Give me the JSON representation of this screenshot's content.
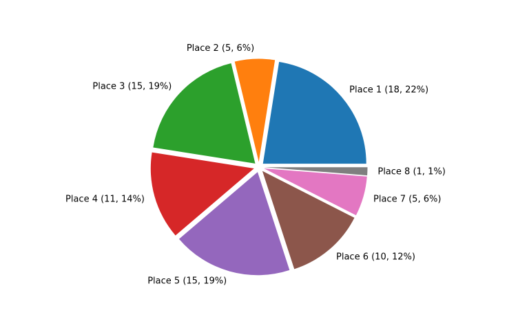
{
  "chart_data": {
    "type": "pie",
    "categories": [
      "Place 1",
      "Place 2",
      "Place 3",
      "Place 4",
      "Place 5",
      "Place 6",
      "Place 7",
      "Place 8"
    ],
    "values": [
      18,
      5,
      15,
      11,
      15,
      10,
      5,
      1
    ],
    "labels": [
      "Place 1 (18, 22%)",
      "Place 2 (5, 6%)",
      "Place 3 (15, 19%)",
      "Place 4 (11, 14%)",
      "Place 5 (15, 19%)",
      "Place 6 (10, 12%)",
      "Place 7 (5, 6%)",
      "Place 8 (1, 1%)"
    ],
    "colors": [
      "#1f77b4",
      "#ff7f0e",
      "#2ca02c",
      "#d62728",
      "#9467bd",
      "#8c564b",
      "#e377c2",
      "#7f7f7f"
    ],
    "start_angle_deg": 0,
    "direction": "counterclockwise",
    "exploded": true,
    "title": ""
  }
}
